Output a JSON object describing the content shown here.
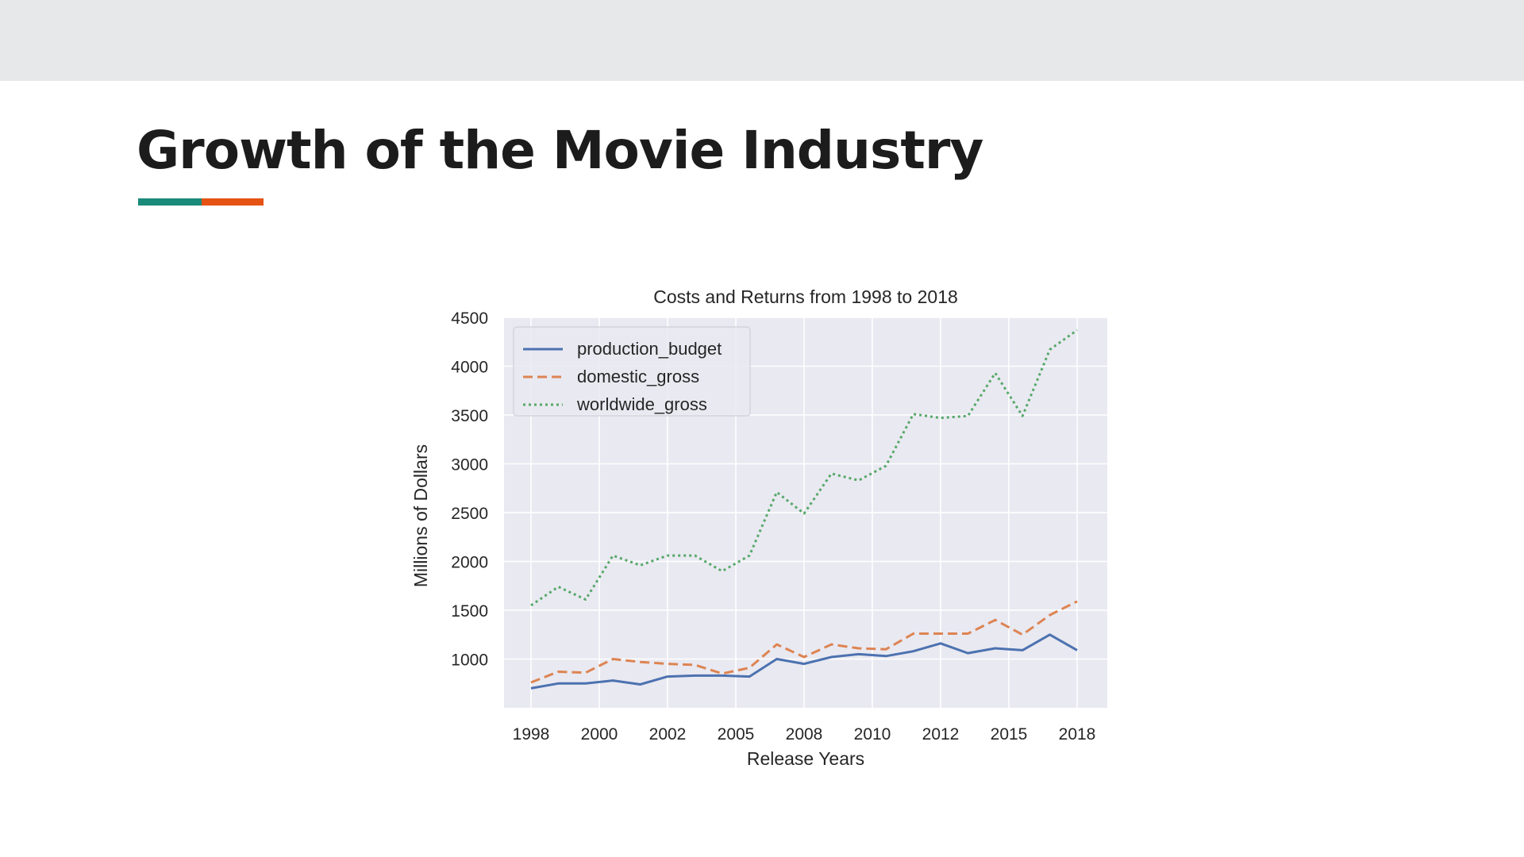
{
  "slide": {
    "title": "Growth of the Movie Industry",
    "accent_colors": [
      "#1a8a7a",
      "#e55314"
    ],
    "topbar_color": "#e6e8ea"
  },
  "chart_data": {
    "type": "line",
    "title": "Costs and Returns from 1998 to 2018",
    "xlabel": "Release Years",
    "ylabel": "Millions of Dollars",
    "xticks": [
      "1998",
      "2000",
      "2002",
      "2005",
      "2008",
      "2010",
      "2012",
      "2015",
      "2018"
    ],
    "yticks": [
      "1000",
      "1500",
      "2000",
      "2500",
      "3000",
      "3500",
      "4000",
      "4500"
    ],
    "ylim": [
      500,
      4500
    ],
    "grid": true,
    "legend_position": "upper-left",
    "background": "#e9e9f1",
    "x": [
      "1998",
      "1999",
      "2000",
      "2001",
      "2002",
      "2003",
      "2004",
      "2005",
      "2006",
      "2007",
      "2008",
      "2009",
      "2010",
      "2011",
      "2012",
      "2013",
      "2014",
      "2015",
      "2016",
      "2017",
      "2018"
    ],
    "series": [
      {
        "name": "production_budget",
        "color": "#4c72b0",
        "style": "solid",
        "values": [
          700,
          750,
          750,
          780,
          740,
          820,
          830,
          830,
          820,
          1000,
          950,
          1020,
          1050,
          1030,
          1080,
          1160,
          1060,
          1110,
          1090,
          1250,
          1090
        ]
      },
      {
        "name": "domestic_gross",
        "color": "#dd8452",
        "style": "dashed",
        "values": [
          760,
          870,
          860,
          1000,
          970,
          950,
          940,
          850,
          910,
          1150,
          1020,
          1150,
          1110,
          1100,
          1260,
          1260,
          1260,
          1400,
          1250,
          1450,
          1590
        ]
      },
      {
        "name": "worldwide_gross",
        "color": "#55a868",
        "style": "dotted",
        "values": [
          1550,
          1740,
          1610,
          2060,
          1960,
          2060,
          2060,
          1900,
          2060,
          2710,
          2490,
          2900,
          2830,
          2980,
          3510,
          3470,
          3490,
          3930,
          3490,
          4170,
          4370
        ]
      }
    ]
  }
}
